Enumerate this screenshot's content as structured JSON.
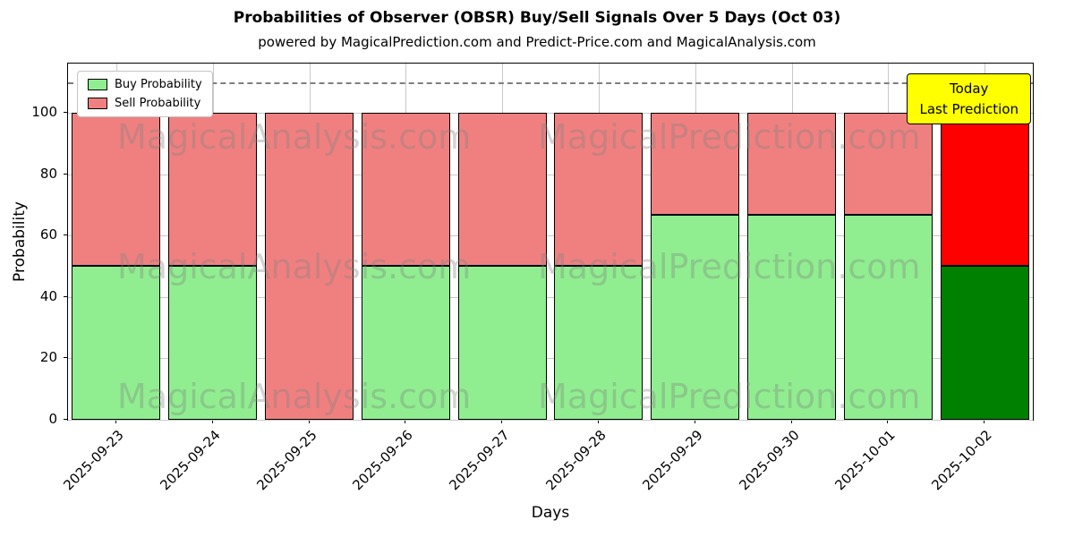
{
  "chart_data": {
    "type": "bar",
    "stacked": true,
    "title": "Probabilities of Observer (OBSR) Buy/Sell Signals Over 5 Days (Oct 03)",
    "subtitle": "powered by MagicalPrediction.com and Predict-Price.com and MagicalAnalysis.com",
    "xlabel": "Days",
    "ylabel": "Probability",
    "ylim": [
      0,
      116
    ],
    "yticks": [
      0,
      20,
      40,
      60,
      80,
      100
    ],
    "grid": true,
    "categories": [
      "2025-09-23",
      "2025-09-24",
      "2025-09-25",
      "2025-09-26",
      "2025-09-27",
      "2025-09-28",
      "2025-09-29",
      "2025-09-30",
      "2025-10-01",
      "2025-10-02"
    ],
    "series": [
      {
        "name": "Buy Probability",
        "values": [
          50,
          50,
          0,
          50,
          50,
          50,
          66.67,
          66.67,
          66.67,
          50
        ]
      },
      {
        "name": "Sell Probability",
        "values": [
          50,
          50,
          100,
          50,
          50,
          50,
          33.33,
          33.33,
          33.33,
          50
        ]
      }
    ],
    "colors": {
      "buy": "#90EE90",
      "sell": "#F08080",
      "today_buy": "#008000",
      "today_sell": "#FF0000",
      "grid": "#c9c9c9",
      "threshold": "#7f7f7f",
      "annotation_bg": "#ffff00"
    },
    "today_index": 9,
    "threshold_line": {
      "y": 110,
      "style": "dashed"
    },
    "legend": [
      {
        "label": "Buy Probability",
        "color": "#90EE90"
      },
      {
        "label": "Sell Probability",
        "color": "#F08080"
      }
    ],
    "legend_position": "upper-left",
    "annotation": {
      "line1": "Today",
      "line2": "Last Prediction"
    },
    "watermarks": [
      "MagicalAnalysis.com",
      "MagicalPrediction.com"
    ]
  }
}
